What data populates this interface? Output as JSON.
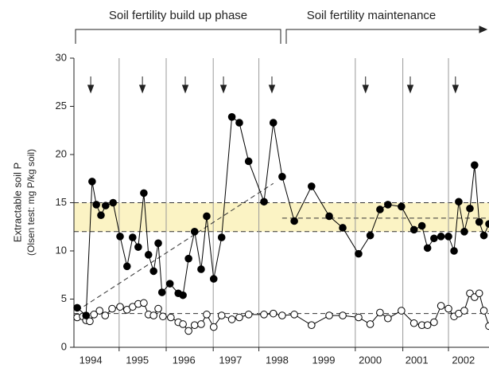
{
  "chart_data": {
    "type": "line",
    "phase_labels": [
      "Soil fertility build up phase",
      "Soil fertility maintenance"
    ],
    "y_label": [
      "Extractable soil P",
      "(Olsen test: mg P/kg soil)"
    ],
    "xlim": [
      1993.64,
      2002.55
    ],
    "xticks": [
      1994,
      1995,
      1996,
      1997,
      1998,
      1999,
      2000,
      2001,
      2002
    ],
    "ylim": [
      0,
      30
    ],
    "yticks": [
      0,
      5,
      10,
      15,
      20,
      25,
      30
    ],
    "season_lines": [
      1994.61,
      1995.62,
      1996.63,
      1997.61,
      1999.68,
      2000.7,
      2001.68
    ],
    "application_arrows": [
      1994.0,
      1995.11,
      1996.03,
      1996.85,
      1997.89,
      1999.9,
      2000.86,
      2001.83
    ],
    "target_band": [
      12,
      15
    ],
    "target_mid": 13.4,
    "baseline": 3.5,
    "trend": {
      "x": [
        1993.71,
        1997.92
      ],
      "values": [
        3.8,
        17.0
      ]
    },
    "series": [
      {
        "color": "#000000",
        "filled": true,
        "x": [
          1993.71,
          1993.9,
          1994.03,
          1994.12,
          1994.22,
          1994.32,
          1994.48,
          1994.63,
          1994.78,
          1994.9,
          1995.02,
          1995.14,
          1995.24,
          1995.35,
          1995.45,
          1995.53,
          1995.7,
          1995.88,
          1995.98,
          1996.1,
          1996.23,
          1996.37,
          1996.49,
          1996.64,
          1996.81,
          1997.03,
          1997.19,
          1997.39,
          1997.72,
          1997.92,
          1998.11,
          1998.37,
          1998.74,
          1999.12,
          1999.41,
          1999.75,
          2000.0,
          2000.21,
          2000.38,
          2000.67,
          2000.94,
          2001.11,
          2001.23,
          2001.37,
          2001.52,
          2001.68,
          2001.8,
          2001.9,
          2002.02,
          2002.14,
          2002.24,
          2002.34,
          2002.44,
          2002.55
        ],
        "values": [
          4.1,
          3.3,
          17.2,
          14.8,
          13.7,
          14.7,
          15.0,
          11.5,
          8.4,
          11.4,
          10.4,
          16.0,
          9.6,
          7.9,
          10.8,
          5.7,
          6.6,
          5.6,
          5.4,
          9.2,
          12.0,
          8.1,
          13.6,
          7.1,
          11.4,
          23.9,
          23.3,
          19.3,
          15.1,
          23.3,
          17.7,
          13.1,
          16.7,
          13.6,
          12.4,
          9.7,
          11.6,
          14.3,
          14.8,
          14.6,
          12.2,
          12.6,
          10.3,
          11.3,
          11.5,
          11.5,
          10.0,
          15.1,
          12.0,
          14.4,
          18.9,
          13.0,
          11.6,
          12.8
        ]
      },
      {
        "color": "#000000",
        "filled": false,
        "x": [
          1993.71,
          1993.83,
          1993.9,
          1993.98,
          1994.07,
          1994.19,
          1994.31,
          1994.46,
          1994.63,
          1994.78,
          1994.9,
          1995.02,
          1995.14,
          1995.24,
          1995.35,
          1995.45,
          1995.55,
          1995.72,
          1995.88,
          1995.98,
          1996.1,
          1996.23,
          1996.37,
          1996.49,
          1996.64,
          1996.81,
          1997.03,
          1997.19,
          1997.39,
          1997.72,
          1997.92,
          1998.11,
          1998.37,
          1998.74,
          1999.12,
          1999.41,
          1999.75,
          2000.0,
          2000.21,
          2000.38,
          2000.67,
          2000.94,
          2001.11,
          2001.23,
          2001.37,
          2001.52,
          2001.68,
          2001.8,
          2001.9,
          2002.02,
          2002.14,
          2002.24,
          2002.34,
          2002.44,
          2002.55
        ],
        "values": [
          3.1,
          3.2,
          2.8,
          2.7,
          3.4,
          3.8,
          3.3,
          4.0,
          4.2,
          3.9,
          4.2,
          4.5,
          4.6,
          3.4,
          3.3,
          4.0,
          3.2,
          3.1,
          2.6,
          2.4,
          1.7,
          2.3,
          2.4,
          3.4,
          2.1,
          3.3,
          2.9,
          3.1,
          3.4,
          3.4,
          3.5,
          3.3,
          3.4,
          2.3,
          3.3,
          3.3,
          3.1,
          2.4,
          3.6,
          3.0,
          3.8,
          2.5,
          2.3,
          2.3,
          2.6,
          4.3,
          4.0,
          3.2,
          3.5,
          3.8,
          5.6,
          5.2,
          5.6,
          3.8,
          2.2
        ]
      }
    ]
  }
}
